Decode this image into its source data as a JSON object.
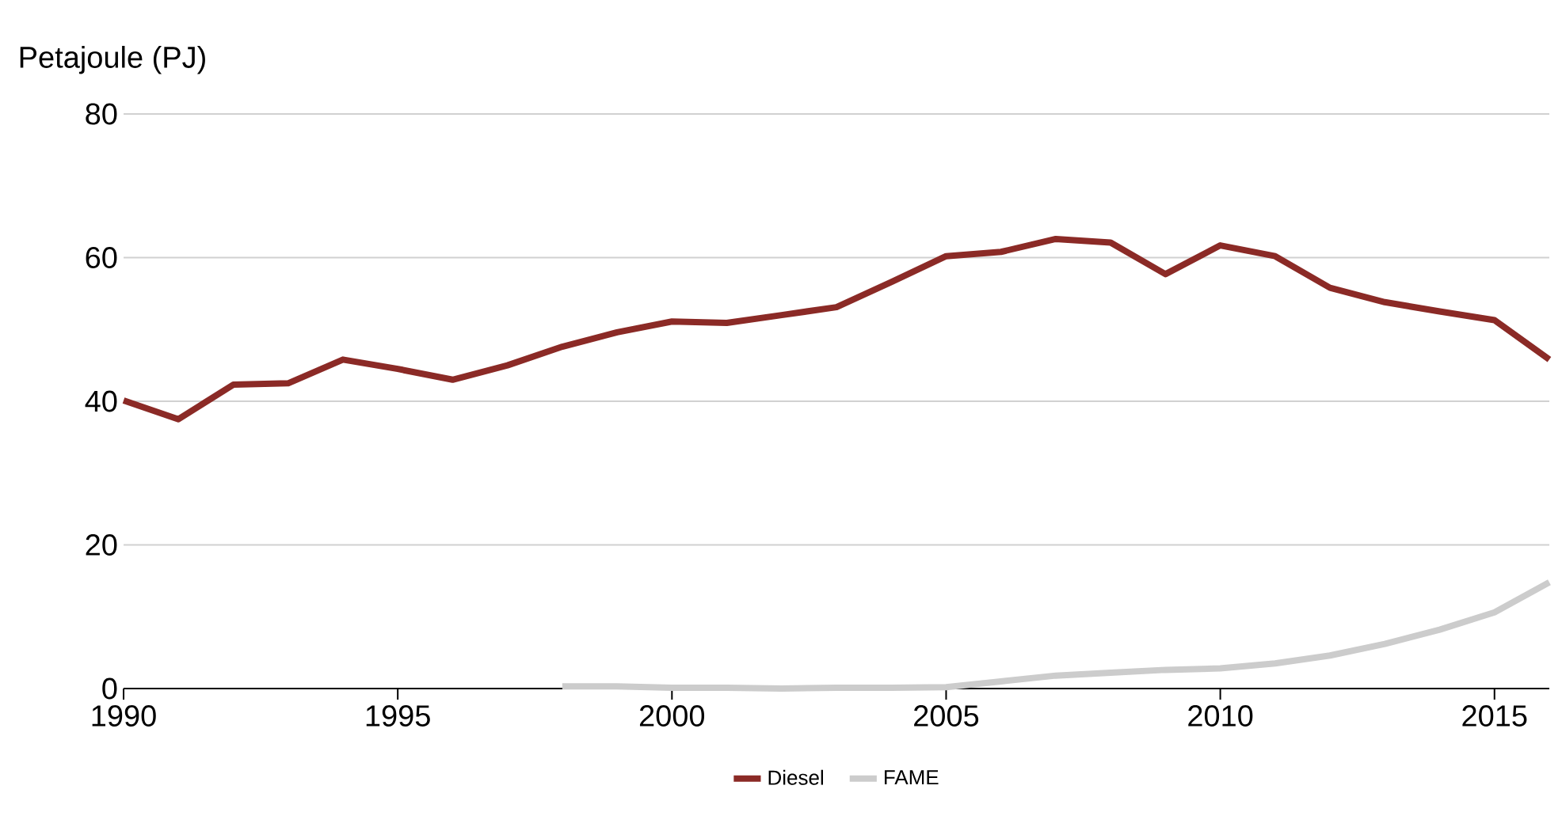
{
  "chart_data": {
    "type": "line",
    "ylabel": "Petajoule (PJ)",
    "xlim": [
      1990,
      2016
    ],
    "ylim": [
      0,
      80
    ],
    "xticks": [
      1990,
      1995,
      2000,
      2005,
      2010,
      2015
    ],
    "yticks": [
      0,
      20,
      40,
      60,
      80
    ],
    "grid": "y",
    "legend": "bottom",
    "marker": "none",
    "line_style": "solid",
    "series": [
      {
        "name": "Diesel",
        "color": "#8b2a26",
        "x": [
          1990,
          1991,
          1992,
          1993,
          1994,
          1995,
          1996,
          1997,
          1998,
          1999,
          2000,
          2001,
          2002,
          2003,
          2004,
          2005,
          2006,
          2007,
          2008,
          2009,
          2010,
          2011,
          2012,
          2013,
          2014,
          2015,
          2016
        ],
        "values": [
          40.1,
          37.5,
          42.3,
          42.5,
          45.8,
          44.5,
          43.0,
          45.0,
          47.6,
          49.6,
          51.1,
          50.9,
          52.0,
          53.1,
          56.6,
          60.2,
          60.8,
          62.6,
          62.1,
          57.7,
          61.7,
          60.2,
          55.8,
          53.8,
          52.5,
          51.3,
          45.8
        ]
      },
      {
        "name": "FAME",
        "color": "#cccccc",
        "x": [
          1998,
          1999,
          2000,
          2001,
          2002,
          2003,
          2004,
          2005,
          2006,
          2007,
          2008,
          2009,
          2010,
          2011,
          2012,
          2013,
          2014,
          2015,
          2016
        ],
        "values": [
          0.3,
          0.3,
          0.1,
          0.1,
          0.0,
          0.1,
          0.1,
          0.2,
          1.0,
          1.8,
          2.2,
          2.6,
          2.8,
          3.5,
          4.6,
          6.2,
          8.2,
          10.6,
          14.8
        ]
      }
    ]
  }
}
